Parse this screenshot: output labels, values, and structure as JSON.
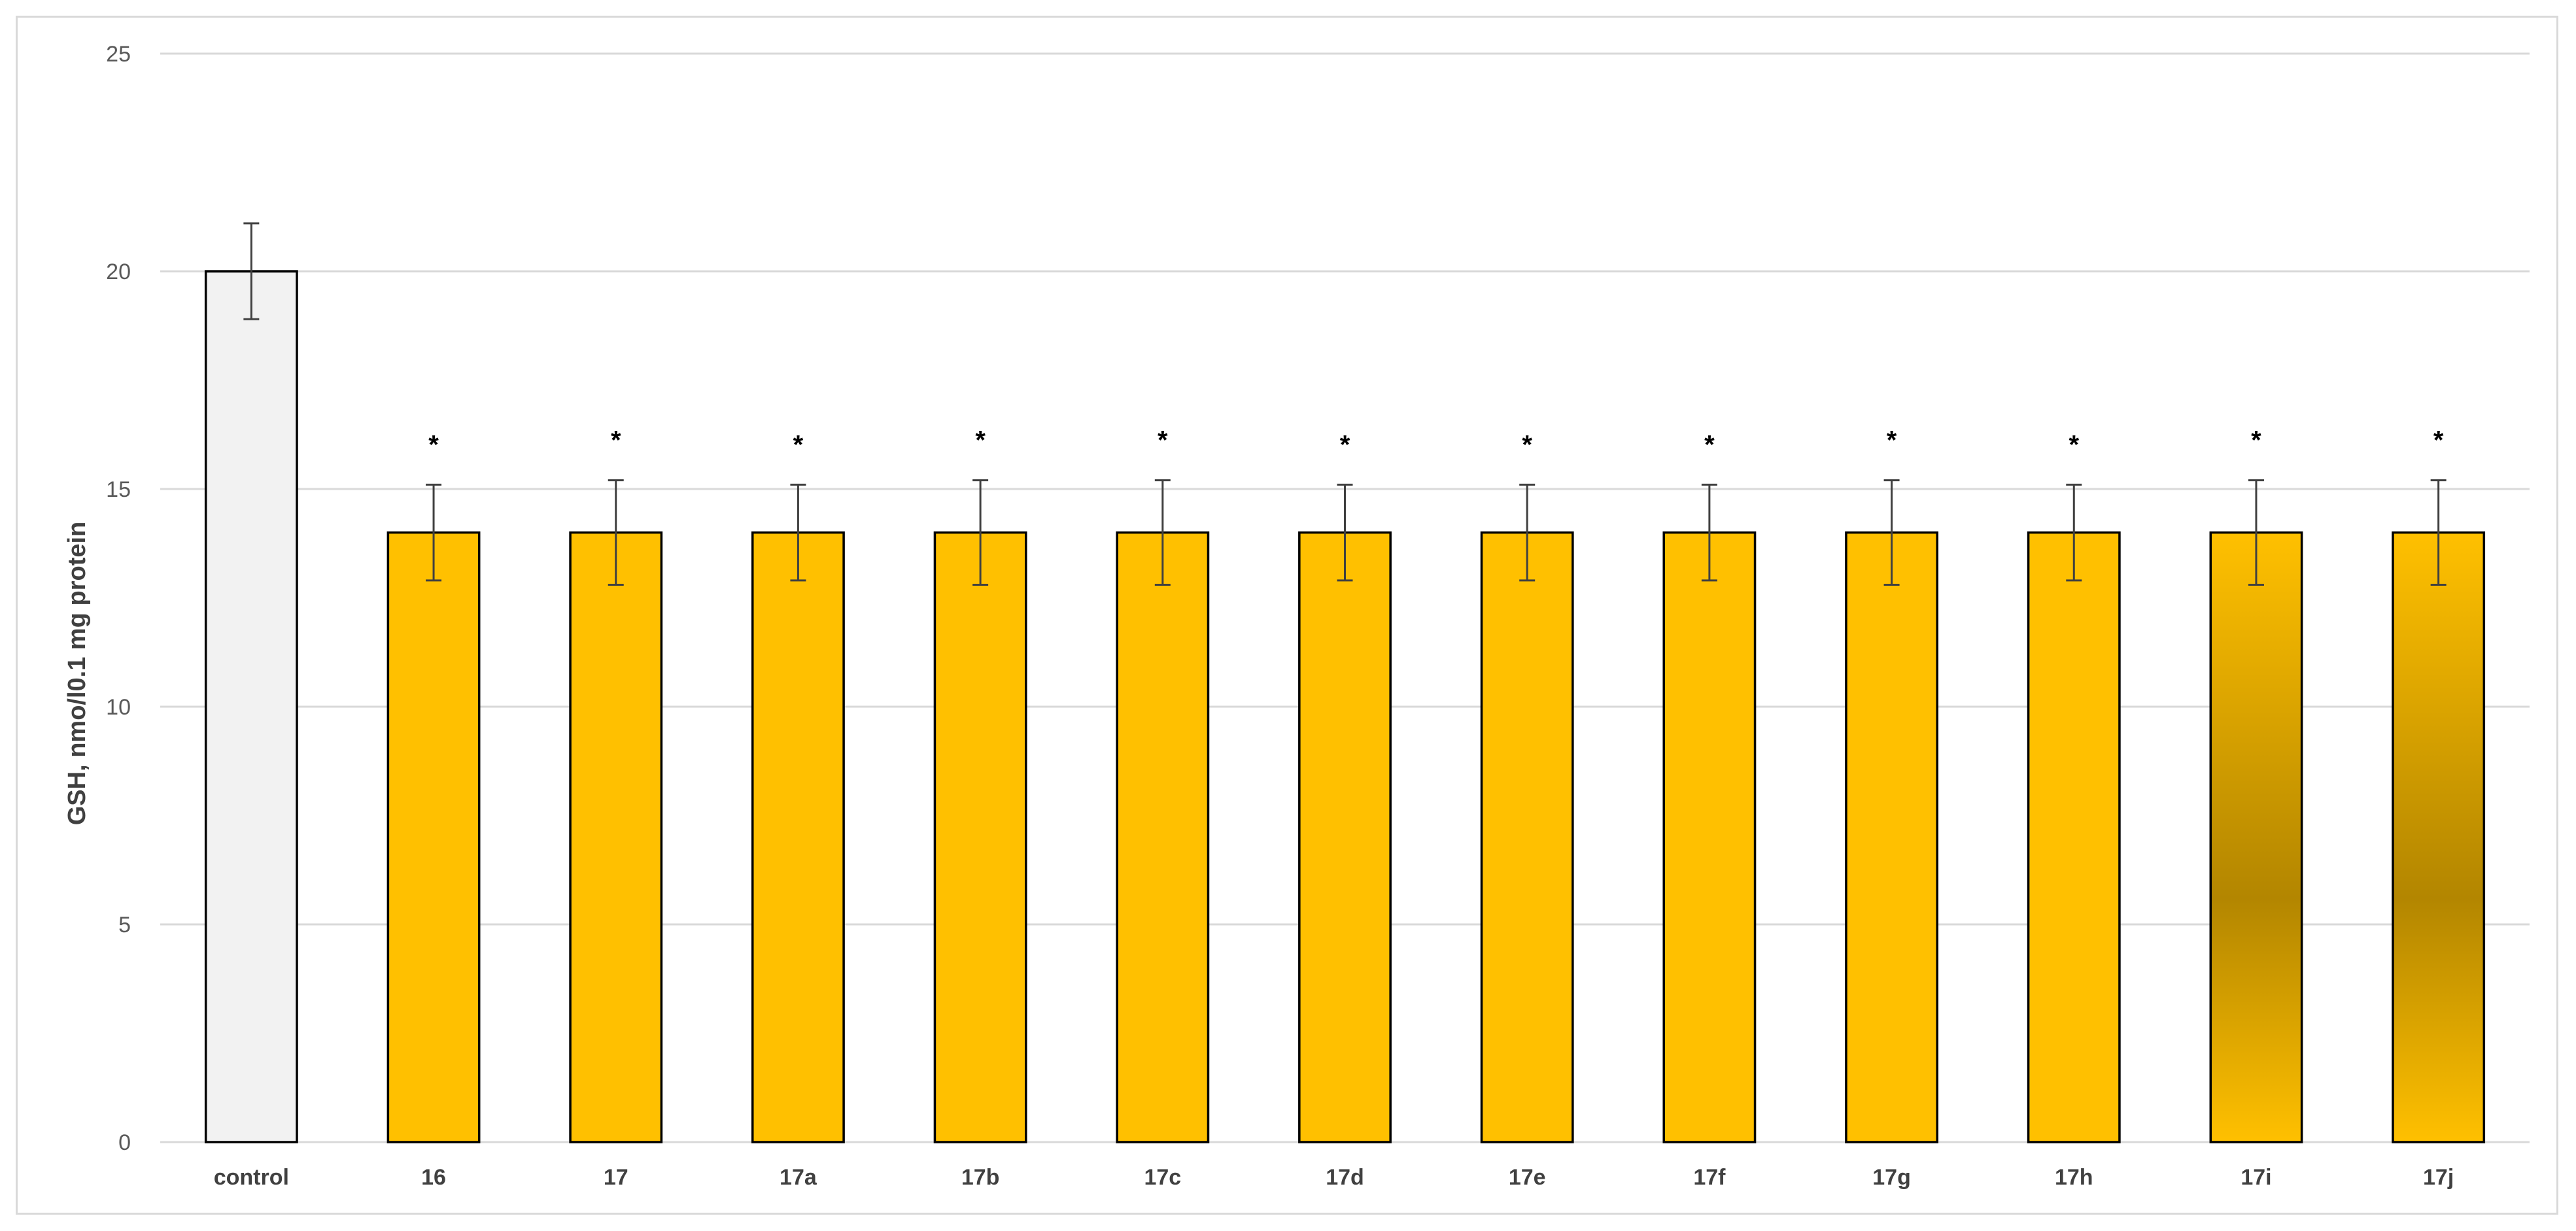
{
  "chart_data": {
    "type": "bar",
    "categories": [
      "control",
      "16",
      "17",
      "17a",
      "17b",
      "17c",
      "17d",
      "17e",
      "17f",
      "17g",
      "17h",
      "17i",
      "17j"
    ],
    "values": [
      20,
      14,
      14,
      14,
      14,
      14,
      14,
      14,
      14,
      14,
      14,
      14,
      14
    ],
    "errors": [
      1.1,
      1.1,
      1.2,
      1.1,
      1.2,
      1.2,
      1.1,
      1.1,
      1.1,
      1.2,
      1.1,
      1.2,
      1.2
    ],
    "significance": [
      "",
      "*",
      "*",
      "*",
      "*",
      "*",
      "*",
      "*",
      "*",
      "*",
      "*",
      "*",
      "*"
    ],
    "title": "",
    "xlabel": "",
    "ylabel": "GSH, nmo/l0.1 mg protein",
    "ylim": [
      0,
      25
    ],
    "yticks": [
      0,
      5,
      10,
      15,
      20,
      25
    ],
    "grid": true,
    "legend": "none",
    "colors": {
      "control": "#f2f2f2",
      "treated": "#ffc000",
      "treated_dark": "#b38600",
      "edge": "#000000",
      "grid": "#d9d9d9",
      "error": "#404040"
    }
  }
}
